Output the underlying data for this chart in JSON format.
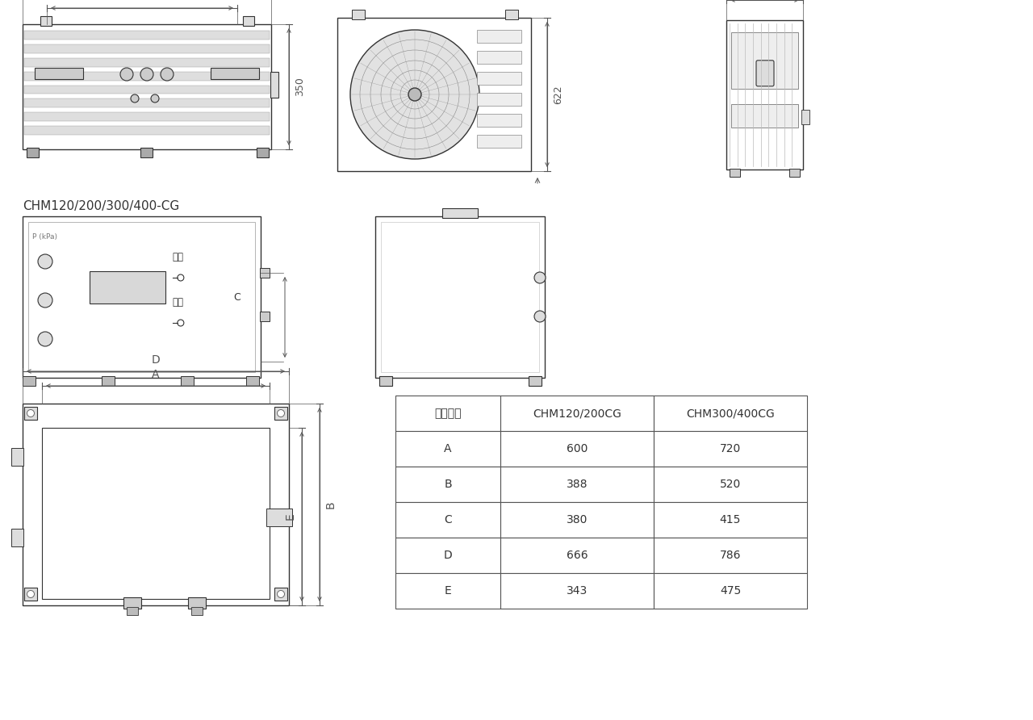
{
  "bg_color": "#ffffff",
  "line_color": "#333333",
  "dim_color": "#555555",
  "text_color": "#333333",
  "title_label": "CHM120/200/300/400-CG",
  "table_headers": [
    "机组型号",
    "CHM120/200CG",
    "CHM300/400CG"
  ],
  "table_rows": [
    [
      "A",
      "600",
      "720"
    ],
    [
      "B",
      "388",
      "520"
    ],
    [
      "C",
      "380",
      "415"
    ],
    [
      "D",
      "666",
      "786"
    ],
    [
      "E",
      "343",
      "475"
    ]
  ],
  "font_size_dim": 9,
  "font_size_title": 11,
  "font_size_table": 10
}
